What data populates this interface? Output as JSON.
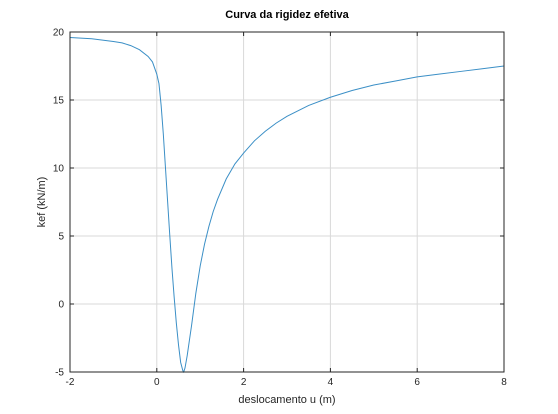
{
  "chart_data": {
    "type": "line",
    "title": "Curva da rigidez efetiva",
    "xlabel": "deslocamento u (m)",
    "ylabel": "kef (kN/m)",
    "xlim": [
      -2,
      8
    ],
    "ylim": [
      -5,
      20
    ],
    "xticks": [
      -2,
      0,
      2,
      4,
      6,
      8
    ],
    "yticks": [
      -5,
      0,
      5,
      10,
      15,
      20
    ],
    "grid": true,
    "colors": {
      "line": "#3b8fc6",
      "grid": "#d9d9d9",
      "axis": "#262626"
    },
    "series": [
      {
        "x": [
          -2.0,
          -1.5,
          -1.0,
          -0.8,
          -0.6,
          -0.4,
          -0.2,
          -0.1,
          0.0,
          0.05,
          0.1,
          0.15,
          0.2,
          0.25,
          0.3,
          0.35,
          0.4,
          0.45,
          0.5,
          0.55,
          0.6,
          0.62,
          0.65,
          0.7,
          0.75,
          0.8,
          0.85,
          0.9,
          1.0,
          1.1,
          1.2,
          1.3,
          1.4,
          1.6,
          1.8,
          2.0,
          2.25,
          2.5,
          2.75,
          3.0,
          3.5,
          4.0,
          4.5,
          5.0,
          5.5,
          6.0,
          6.5,
          7.0,
          7.5,
          8.0
        ],
        "y": [
          19.6,
          19.5,
          19.3,
          19.2,
          19.0,
          18.7,
          18.2,
          17.8,
          16.9,
          16.2,
          14.6,
          12.5,
          10.0,
          7.5,
          5.0,
          2.6,
          0.5,
          -1.4,
          -3.0,
          -4.3,
          -4.9,
          -5.0,
          -4.7,
          -3.8,
          -2.7,
          -1.6,
          -0.4,
          0.8,
          2.8,
          4.4,
          5.7,
          6.8,
          7.7,
          9.2,
          10.3,
          11.1,
          12.0,
          12.7,
          13.3,
          13.8,
          14.6,
          15.2,
          15.7,
          16.1,
          16.4,
          16.7,
          16.9,
          17.1,
          17.3,
          17.5
        ]
      }
    ]
  }
}
